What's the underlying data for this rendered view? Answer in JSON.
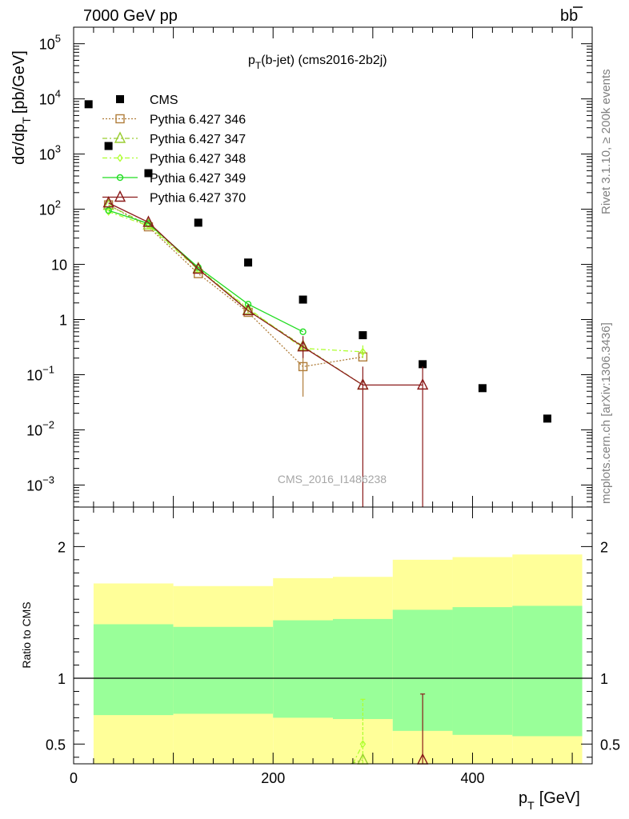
{
  "header": {
    "left": "7000 GeV pp",
    "right_base": "b",
    "right_bar": "b"
  },
  "side_labels": {
    "rivet": "Rivet 3.1.10, ≥ 200k events",
    "mcplots": "mcplots.cern.ch [arXiv:1306.3436]"
  },
  "watermark": "CMS_2016_I1486238",
  "chart_data": [
    {
      "type": "scatter",
      "title": "p_T(b-jet) (cms2016-2b2j)",
      "title_parts": {
        "p": "p",
        "sub": "T",
        "rest": "(b-jet) (cms2016-2b2j)"
      },
      "ylabel_parts": {
        "main": "dσ/dp",
        "sub": "T",
        "unit": "[pb/GeV]"
      },
      "xlim": [
        0,
        520
      ],
      "ylim_log10": [
        -3.4,
        5.3
      ],
      "y_scale": "log",
      "y_ticks": [
        {
          "exp": 5,
          "label": "10",
          "sup": "5"
        },
        {
          "exp": 4,
          "label": "10",
          "sup": "4"
        },
        {
          "exp": 3,
          "label": "10",
          "sup": "3"
        },
        {
          "exp": 2,
          "label": "10",
          "sup": "2"
        },
        {
          "exp": 1,
          "label": "10",
          "sup": ""
        },
        {
          "exp": 0,
          "label": "1",
          "sup": ""
        },
        {
          "exp": -1,
          "label": "10",
          "sup": "−1"
        },
        {
          "exp": -2,
          "label": "10",
          "sup": "−2"
        },
        {
          "exp": -3,
          "label": "10",
          "sup": "−3"
        }
      ],
      "legend_position": "top-left",
      "series": [
        {
          "name": "CMS",
          "color": "#000000",
          "marker": "square-filled",
          "line": "none",
          "x": [
            15,
            35,
            75,
            125,
            175,
            230,
            290,
            350,
            410,
            475
          ],
          "y": [
            8000,
            1400,
            450,
            57,
            10.8,
            2.3,
            0.52,
            0.155,
            0.057,
            0.016
          ]
        },
        {
          "name": "Pythia 6.427 346",
          "color": "#b07d3a",
          "marker": "square-open",
          "line": "dotted",
          "x": [
            35,
            75,
            125,
            175,
            230,
            290
          ],
          "y": [
            120,
            48,
            6.8,
            1.35,
            0.14,
            0.21
          ],
          "yerr_lo": [
            null,
            null,
            null,
            null,
            0.04,
            null
          ],
          "yerr_hi": [
            null,
            null,
            null,
            null,
            0.3,
            null
          ]
        },
        {
          "name": "Pythia 6.427 347",
          "color": "#9acd32",
          "marker": "triangle-open",
          "line": "dashdot",
          "x": [
            35,
            75,
            125,
            175,
            230,
            290
          ],
          "y": [
            118,
            52,
            8.5,
            1.5,
            0.33,
            0.065
          ]
        },
        {
          "name": "Pythia 6.427 348",
          "color": "#adff2f",
          "marker": "diamond-open",
          "line": "dashdot",
          "x": [
            35,
            75,
            125,
            175,
            230,
            290
          ],
          "y": [
            90,
            50,
            8.0,
            1.6,
            0.3,
            0.26
          ],
          "yerr_lo": [
            null,
            null,
            null,
            null,
            null,
            0.2
          ],
          "yerr_hi": [
            null,
            null,
            null,
            null,
            null,
            0.34
          ]
        },
        {
          "name": "Pythia 6.427 349",
          "color": "#22dd22",
          "marker": "circle-open",
          "line": "solid",
          "x": [
            35,
            75,
            125,
            175,
            230
          ],
          "y": [
            95,
            55,
            8.8,
            1.9,
            0.6
          ]
        },
        {
          "name": "Pythia 6.427 370",
          "color": "#8b1a1a",
          "marker": "triangle-open",
          "line": "solid",
          "x": [
            35,
            75,
            125,
            175,
            230,
            290,
            350
          ],
          "y": [
            130,
            58,
            8.2,
            1.45,
            0.32,
            0.065,
            0.065
          ],
          "yerr_lo": [
            null,
            null,
            null,
            null,
            0.2,
            0.0001,
            0.0001
          ],
          "yerr_hi": [
            null,
            null,
            null,
            null,
            0.5,
            0.14,
            0.14
          ]
        }
      ]
    },
    {
      "type": "area",
      "ylabel": "Ratio to CMS",
      "xlabel_parts": {
        "p": "p",
        "sub": "T",
        "unit": "[GeV]"
      },
      "xlim": [
        0,
        520
      ],
      "ylim": [
        0.35,
        2.3
      ],
      "x_ticks": [
        0,
        200,
        400
      ],
      "y_ticks": [
        0.5,
        1,
        2
      ],
      "reference": 1,
      "bands": {
        "colors": {
          "outer": "#ffff99",
          "inner": "#99ff99"
        },
        "bins": [
          {
            "lo": 20,
            "hi": 100,
            "outer": [
              0.35,
              1.72
            ],
            "inner": [
              0.72,
              1.41
            ]
          },
          {
            "lo": 100,
            "hi": 200,
            "outer": [
              0.35,
              1.7
            ],
            "inner": [
              0.73,
              1.39
            ]
          },
          {
            "lo": 200,
            "hi": 260,
            "outer": [
              0.35,
              1.76
            ],
            "inner": [
              0.7,
              1.44
            ]
          },
          {
            "lo": 260,
            "hi": 320,
            "outer": [
              0.35,
              1.77
            ],
            "inner": [
              0.69,
              1.45
            ]
          },
          {
            "lo": 320,
            "hi": 380,
            "outer": [
              0.35,
              1.9
            ],
            "inner": [
              0.6,
              1.52
            ]
          },
          {
            "lo": 380,
            "hi": 440,
            "outer": [
              0.35,
              1.92
            ],
            "inner": [
              0.57,
              1.54
            ]
          },
          {
            "lo": 440,
            "hi": 510,
            "outer": [
              0.35,
              1.94
            ],
            "inner": [
              0.56,
              1.55
            ]
          }
        ]
      },
      "points": [
        {
          "series": "Pythia 6.427 347",
          "x": 290,
          "y": 0.38,
          "color": "#9acd32",
          "marker": "triangle-open"
        },
        {
          "series": "Pythia 6.427 348",
          "x": 290,
          "y": 0.5,
          "err": [
            0.35,
            0.84
          ],
          "color": "#adff2f",
          "marker": "diamond-open"
        },
        {
          "series": "Pythia 6.427 370",
          "x": 350,
          "y": 0.38,
          "err": [
            0.35,
            0.88
          ],
          "color": "#8b1a1a",
          "marker": "triangle-open"
        }
      ],
      "ratio_lines": [
        {
          "series": "Pythia 6.427 347",
          "color": "#9acd32",
          "x": [
            278,
            290
          ],
          "y": [
            0.35,
            0.38
          ]
        },
        {
          "series": "Pythia 6.427 348",
          "color": "#adff2f",
          "x": [
            280,
            290
          ],
          "y": [
            0.35,
            0.5
          ]
        }
      ]
    }
  ]
}
